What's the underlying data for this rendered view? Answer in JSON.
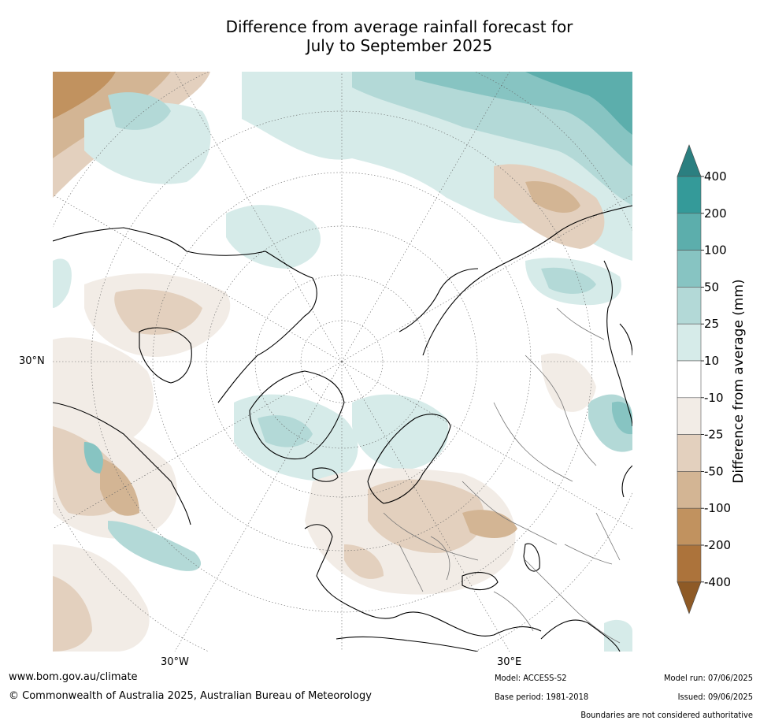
{
  "title": "Difference from average rainfall forecast for\nJuly to September 2025",
  "map": {
    "lat_label": "30°N",
    "lon_labels": [
      "30°W",
      "30°E"
    ]
  },
  "colorbar": {
    "label": "Difference from average (mm)",
    "ticks": [
      "400",
      "200",
      "100",
      "50",
      "25",
      "10",
      "-10",
      "-25",
      "-50",
      "-100",
      "-200",
      "-400"
    ],
    "colors": {
      "over": "#2b7f80",
      "gt200": "#349a99",
      "b100_200": "#5caeac",
      "b50_100": "#87c4c2",
      "b25_50": "#b3d9d7",
      "b10_25": "#d6ebe9",
      "neutral": "#ffffff",
      "bm10_m25": "#f2ece6",
      "bm25_m50": "#e3d0be",
      "bm50_m100": "#d3b594",
      "bm100_m200": "#c1925f",
      "lt_m200": "#ac733b",
      "under": "#8e5a26"
    }
  },
  "footer": {
    "website": "www.bom.gov.au/climate",
    "copyright": "© Commonwealth of Australia 2025, Australian Bureau of Meteorology",
    "model": "Model: ACCESS-S2",
    "base_period": "Base period: 1981-2018",
    "model_run": "Model run: 07/06/2025",
    "issued": "Issued: 09/06/2025",
    "disclaimer": "Boundaries are not considered authoritative"
  }
}
